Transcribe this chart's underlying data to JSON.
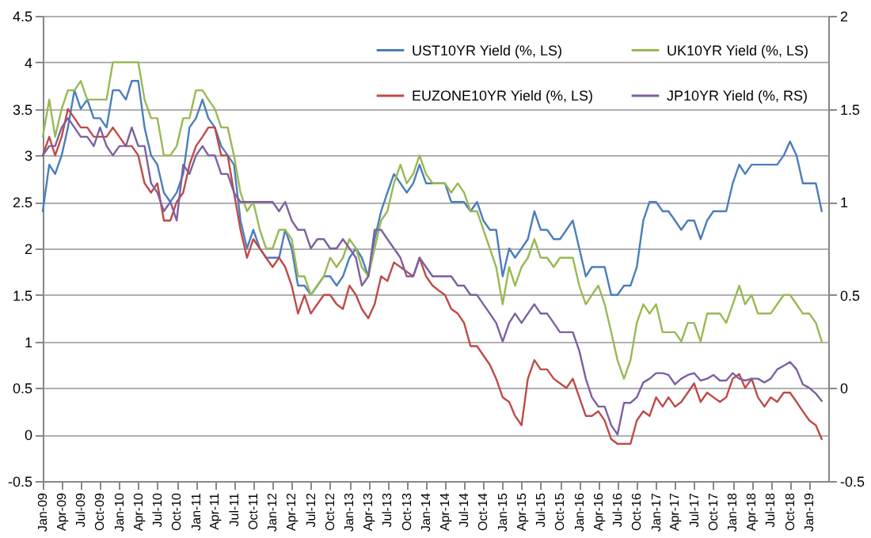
{
  "chart_data": {
    "type": "line",
    "x": [
      "2009-01",
      "2009-02",
      "2009-03",
      "2009-04",
      "2009-05",
      "2009-06",
      "2009-07",
      "2009-08",
      "2009-09",
      "2009-10",
      "2009-11",
      "2009-12",
      "2010-01",
      "2010-02",
      "2010-03",
      "2010-04",
      "2010-05",
      "2010-06",
      "2010-07",
      "2010-08",
      "2010-09",
      "2010-10",
      "2010-11",
      "2010-12",
      "2011-01",
      "2011-02",
      "2011-03",
      "2011-04",
      "2011-05",
      "2011-06",
      "2011-07",
      "2011-08",
      "2011-09",
      "2011-10",
      "2011-11",
      "2011-12",
      "2012-01",
      "2012-02",
      "2012-03",
      "2012-04",
      "2012-05",
      "2012-06",
      "2012-07",
      "2012-08",
      "2012-09",
      "2012-10",
      "2012-11",
      "2012-12",
      "2013-01",
      "2013-02",
      "2013-03",
      "2013-04",
      "2013-05",
      "2013-06",
      "2013-07",
      "2013-08",
      "2013-09",
      "2013-10",
      "2013-11",
      "2013-12",
      "2014-01",
      "2014-02",
      "2014-03",
      "2014-04",
      "2014-05",
      "2014-06",
      "2014-07",
      "2014-08",
      "2014-09",
      "2014-10",
      "2014-11",
      "2014-12",
      "2015-01",
      "2015-02",
      "2015-03",
      "2015-04",
      "2015-05",
      "2015-06",
      "2015-07",
      "2015-08",
      "2015-09",
      "2015-10",
      "2015-11",
      "2015-12",
      "2016-01",
      "2016-02",
      "2016-03",
      "2016-04",
      "2016-05",
      "2016-06",
      "2016-07",
      "2016-08",
      "2016-09",
      "2016-10",
      "2016-11",
      "2016-12",
      "2017-01",
      "2017-02",
      "2017-03",
      "2017-04",
      "2017-05",
      "2017-06",
      "2017-07",
      "2017-08",
      "2017-09",
      "2017-10",
      "2017-11",
      "2017-12",
      "2018-01",
      "2018-02",
      "2018-03",
      "2018-04",
      "2018-05",
      "2018-06",
      "2018-07",
      "2018-08",
      "2018-09",
      "2018-10",
      "2018-11",
      "2018-12",
      "2019-01",
      "2019-02",
      "2019-03"
    ],
    "series": [
      {
        "name": "UST10YR Yield  (%, LS)",
        "color": "#4a7ebb",
        "values": [
          2.4,
          2.9,
          2.8,
          3.0,
          3.3,
          3.7,
          3.5,
          3.6,
          3.4,
          3.4,
          3.3,
          3.7,
          3.7,
          3.6,
          3.8,
          3.8,
          3.3,
          3.0,
          2.9,
          2.6,
          2.5,
          2.6,
          2.8,
          3.3,
          3.4,
          3.6,
          3.4,
          3.3,
          3.1,
          3.0,
          2.9,
          2.3,
          2.0,
          2.2,
          2.0,
          1.9,
          1.9,
          1.9,
          2.2,
          2.0,
          1.6,
          1.6,
          1.5,
          1.6,
          1.7,
          1.7,
          1.6,
          1.7,
          1.9,
          2.0,
          1.9,
          1.7,
          2.1,
          2.4,
          2.6,
          2.8,
          2.7,
          2.6,
          2.7,
          2.9,
          2.7,
          2.7,
          2.7,
          2.7,
          2.5,
          2.5,
          2.5,
          2.4,
          2.5,
          2.3,
          2.2,
          2.2,
          1.7,
          2.0,
          1.9,
          2.0,
          2.1,
          2.4,
          2.2,
          2.2,
          2.1,
          2.1,
          2.2,
          2.3,
          2.0,
          1.7,
          1.8,
          1.8,
          1.8,
          1.5,
          1.5,
          1.6,
          1.6,
          1.8,
          2.3,
          2.5,
          2.5,
          2.4,
          2.4,
          2.3,
          2.2,
          2.3,
          2.3,
          2.1,
          2.3,
          2.4,
          2.4,
          2.4,
          2.7,
          2.9,
          2.8,
          2.9,
          2.9,
          2.9,
          2.9,
          2.9,
          3.0,
          3.15,
          3.0,
          2.7,
          2.7,
          2.7,
          2.4
        ]
      },
      {
        "name": "EUZONE10YR Yield (%, LS)",
        "color": "#be4b48",
        "values": [
          3.0,
          3.2,
          3.0,
          3.2,
          3.5,
          3.4,
          3.3,
          3.3,
          3.2,
          3.2,
          3.2,
          3.3,
          3.2,
          3.1,
          3.1,
          3.0,
          2.7,
          2.6,
          2.7,
          2.3,
          2.3,
          2.5,
          2.6,
          2.9,
          3.1,
          3.2,
          3.3,
          3.3,
          3.0,
          3.0,
          2.6,
          2.2,
          1.9,
          2.1,
          2.0,
          1.9,
          1.8,
          1.9,
          1.8,
          1.6,
          1.3,
          1.5,
          1.3,
          1.4,
          1.5,
          1.5,
          1.4,
          1.35,
          1.6,
          1.5,
          1.35,
          1.25,
          1.4,
          1.7,
          1.65,
          1.85,
          1.8,
          1.75,
          1.7,
          1.9,
          1.7,
          1.6,
          1.55,
          1.5,
          1.35,
          1.3,
          1.2,
          0.95,
          0.95,
          0.85,
          0.75,
          0.6,
          0.4,
          0.35,
          0.2,
          0.1,
          0.6,
          0.8,
          0.7,
          0.7,
          0.6,
          0.55,
          0.5,
          0.6,
          0.4,
          0.2,
          0.2,
          0.25,
          0.15,
          -0.05,
          -0.1,
          -0.1,
          -0.1,
          0.15,
          0.25,
          0.2,
          0.4,
          0.3,
          0.4,
          0.3,
          0.35,
          0.45,
          0.55,
          0.35,
          0.45,
          0.4,
          0.35,
          0.4,
          0.6,
          0.65,
          0.5,
          0.6,
          0.4,
          0.3,
          0.4,
          0.35,
          0.45,
          0.45,
          0.35,
          0.25,
          0.15,
          0.1,
          -0.05
        ]
      },
      {
        "name": "UK10YR Yield (%, LS)",
        "color": "#98b954",
        "values": [
          3.2,
          3.6,
          3.2,
          3.5,
          3.7,
          3.7,
          3.8,
          3.6,
          3.6,
          3.6,
          3.6,
          4.0,
          4.0,
          4.0,
          4.0,
          4.0,
          3.6,
          3.4,
          3.4,
          3.0,
          3.0,
          3.1,
          3.4,
          3.4,
          3.7,
          3.7,
          3.6,
          3.5,
          3.3,
          3.3,
          3.0,
          2.6,
          2.4,
          2.5,
          2.2,
          2.0,
          2.0,
          2.2,
          2.2,
          2.1,
          1.7,
          1.7,
          1.5,
          1.6,
          1.7,
          1.9,
          1.8,
          1.9,
          2.1,
          2.0,
          1.8,
          1.7,
          2.0,
          2.3,
          2.4,
          2.7,
          2.9,
          2.7,
          2.8,
          3.0,
          2.8,
          2.7,
          2.7,
          2.7,
          2.6,
          2.7,
          2.6,
          2.4,
          2.4,
          2.2,
          2.0,
          1.8,
          1.4,
          1.8,
          1.6,
          1.8,
          1.9,
          2.1,
          1.9,
          1.9,
          1.8,
          1.9,
          1.9,
          1.9,
          1.6,
          1.4,
          1.5,
          1.6,
          1.4,
          1.1,
          0.8,
          0.6,
          0.8,
          1.2,
          1.4,
          1.3,
          1.4,
          1.1,
          1.1,
          1.1,
          1.0,
          1.2,
          1.2,
          1.0,
          1.3,
          1.3,
          1.3,
          1.2,
          1.4,
          1.6,
          1.4,
          1.5,
          1.3,
          1.3,
          1.3,
          1.4,
          1.5,
          1.5,
          1.4,
          1.3,
          1.3,
          1.2,
          1.0
        ]
      },
      {
        "name": "JP10YR Yield (%, RS)",
        "color": "#7d60a0",
        "axis": "y2",
        "values": [
          1.25,
          1.3,
          1.3,
          1.4,
          1.45,
          1.4,
          1.35,
          1.35,
          1.3,
          1.4,
          1.3,
          1.25,
          1.3,
          1.3,
          1.4,
          1.3,
          1.3,
          1.1,
          1.05,
          0.95,
          1.0,
          0.9,
          1.2,
          1.15,
          1.25,
          1.3,
          1.25,
          1.25,
          1.15,
          1.15,
          1.05,
          1.0,
          1.0,
          1.0,
          1.0,
          1.0,
          1.0,
          0.95,
          1.0,
          0.9,
          0.85,
          0.85,
          0.75,
          0.8,
          0.8,
          0.75,
          0.75,
          0.8,
          0.75,
          0.7,
          0.55,
          0.6,
          0.85,
          0.85,
          0.8,
          0.75,
          0.7,
          0.6,
          0.6,
          0.7,
          0.65,
          0.6,
          0.6,
          0.6,
          0.6,
          0.55,
          0.55,
          0.5,
          0.5,
          0.45,
          0.4,
          0.35,
          0.25,
          0.35,
          0.4,
          0.35,
          0.4,
          0.45,
          0.4,
          0.4,
          0.35,
          0.3,
          0.3,
          0.3,
          0.2,
          0.05,
          -0.05,
          -0.1,
          -0.1,
          -0.2,
          -0.25,
          -0.08,
          -0.08,
          -0.05,
          0.03,
          0.05,
          0.08,
          0.08,
          0.07,
          0.02,
          0.05,
          0.07,
          0.08,
          0.04,
          0.05,
          0.07,
          0.04,
          0.04,
          0.08,
          0.05,
          0.04,
          0.05,
          0.05,
          0.03,
          0.05,
          0.1,
          0.12,
          0.14,
          0.1,
          0.02,
          0.0,
          -0.03,
          -0.07
        ]
      }
    ],
    "xlim": [
      "2009-01",
      "2019-04"
    ],
    "xticks": [
      {
        "value": "2009-01",
        "label": "Jan-09"
      },
      {
        "value": "2009-04",
        "label": "Apr-09"
      },
      {
        "value": "2009-07",
        "label": "Jul-09"
      },
      {
        "value": "2009-10",
        "label": "Oct-09"
      },
      {
        "value": "2010-01",
        "label": "Jan-10"
      },
      {
        "value": "2010-04",
        "label": "Apr-10"
      },
      {
        "value": "2010-07",
        "label": "Jul-10"
      },
      {
        "value": "2010-10",
        "label": "Oct-10"
      },
      {
        "value": "2011-01",
        "label": "Jan-11"
      },
      {
        "value": "2011-04",
        "label": "Apr-11"
      },
      {
        "value": "2011-07",
        "label": "Jul-11"
      },
      {
        "value": "2011-10",
        "label": "Oct-11"
      },
      {
        "value": "2012-01",
        "label": "Jan-12"
      },
      {
        "value": "2012-04",
        "label": "Apr-12"
      },
      {
        "value": "2012-07",
        "label": "Jul-12"
      },
      {
        "value": "2012-10",
        "label": "Oct-12"
      },
      {
        "value": "2013-01",
        "label": "Jan-13"
      },
      {
        "value": "2013-04",
        "label": "Apr-13"
      },
      {
        "value": "2013-07",
        "label": "Jul-13"
      },
      {
        "value": "2013-10",
        "label": "Oct-13"
      },
      {
        "value": "2014-01",
        "label": "Jan-14"
      },
      {
        "value": "2014-04",
        "label": "Apr-14"
      },
      {
        "value": "2014-07",
        "label": "Jul-14"
      },
      {
        "value": "2014-10",
        "label": "Oct-14"
      },
      {
        "value": "2015-01",
        "label": "Jan-15"
      },
      {
        "value": "2015-04",
        "label": "Apr-15"
      },
      {
        "value": "2015-07",
        "label": "Jul-15"
      },
      {
        "value": "2015-10",
        "label": "Oct-15"
      },
      {
        "value": "2016-01",
        "label": "Jan-16"
      },
      {
        "value": "2016-04",
        "label": "Apr-16"
      },
      {
        "value": "2016-07",
        "label": "Jul-16"
      },
      {
        "value": "2016-10",
        "label": "Oct-16"
      },
      {
        "value": "2017-01",
        "label": "Jan-17"
      },
      {
        "value": "2017-04",
        "label": "Apr-17"
      },
      {
        "value": "2017-07",
        "label": "Jul-17"
      },
      {
        "value": "2017-10",
        "label": "Oct-17"
      },
      {
        "value": "2018-01",
        "label": "Jan-18"
      },
      {
        "value": "2018-04",
        "label": "Apr-18"
      },
      {
        "value": "2018-07",
        "label": "Jul-18"
      },
      {
        "value": "2018-10",
        "label": "Oct-18"
      },
      {
        "value": "2019-01",
        "label": "Jan-19"
      }
    ],
    "ylim": [
      -0.5,
      4.5
    ],
    "yticks": [
      -0.5,
      0,
      0.5,
      1,
      1.5,
      2,
      2.5,
      3,
      3.5,
      4,
      4.5
    ],
    "y2lim": [
      -0.5,
      2
    ],
    "y2ticks": [
      -0.5,
      0,
      0.5,
      1,
      1.5,
      2
    ],
    "grid": "y",
    "legend": "top right"
  }
}
